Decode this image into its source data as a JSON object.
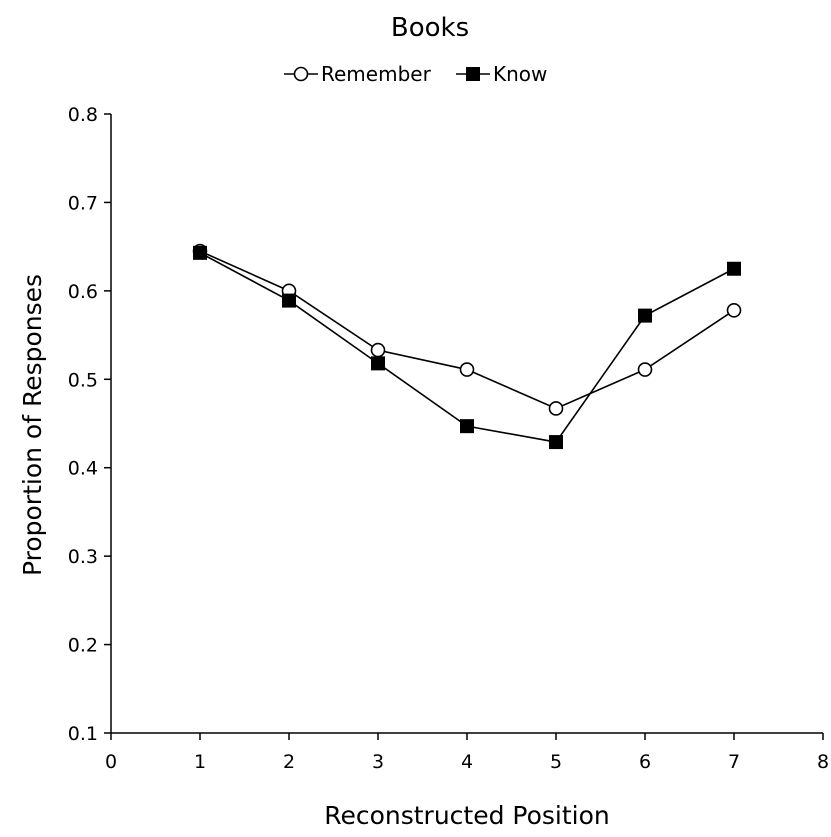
{
  "chart_data": {
    "type": "line",
    "title": "Books",
    "xlabel": "Reconstructed Position",
    "ylabel": "Proportion of Responses",
    "xlim": [
      0,
      8
    ],
    "ylim": [
      0.1,
      0.8
    ],
    "x_ticks": [
      "0",
      "1",
      "2",
      "3",
      "4",
      "5",
      "6",
      "7",
      "8"
    ],
    "y_ticks": [
      "0.1",
      "0.2",
      "0.3",
      "0.4",
      "0.5",
      "0.6",
      "0.7",
      "0.8"
    ],
    "grid": false,
    "legend_position": "top-center",
    "x": [
      1,
      2,
      3,
      4,
      5,
      6,
      7
    ],
    "series": [
      {
        "name": "Remember",
        "marker": "open-circle",
        "color": "#000000",
        "values": [
          0.645,
          0.6,
          0.533,
          0.511,
          0.467,
          0.511,
          0.578
        ]
      },
      {
        "name": "Know",
        "marker": "filled-square",
        "color": "#000000",
        "values": [
          0.643,
          0.589,
          0.518,
          0.447,
          0.429,
          0.572,
          0.625
        ]
      }
    ]
  }
}
